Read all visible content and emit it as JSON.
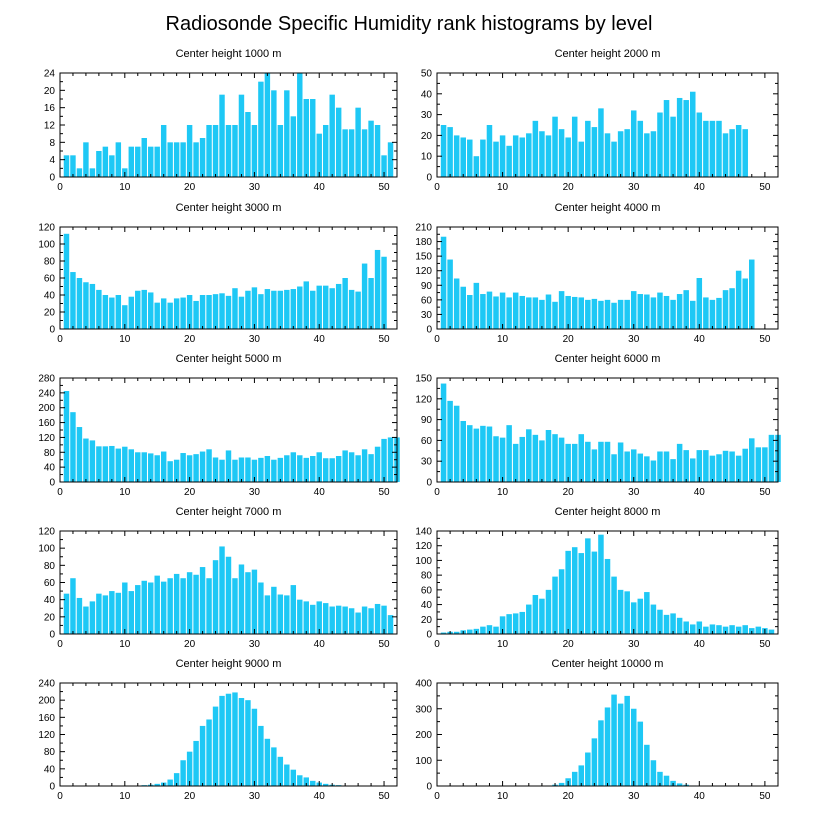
{
  "title": "Radiosonde Specific Humidity rank histograms by level",
  "colors": {
    "bar": "#1EC8F5",
    "axis": "#000000",
    "background": "#ffffff"
  },
  "chart_data": [
    {
      "type": "bar",
      "title": "Center height 1000 m",
      "ylim": [
        0,
        24
      ],
      "yticks": [
        0,
        4,
        8,
        12,
        16,
        20,
        24
      ],
      "xlim": [
        0,
        52
      ],
      "xticks": [
        0,
        10,
        20,
        30,
        40,
        50
      ],
      "values": [
        5,
        5,
        2,
        8,
        2,
        6,
        7,
        5,
        8,
        2,
        7,
        7,
        9,
        7,
        7,
        12,
        8,
        8,
        8,
        12,
        8,
        9,
        12,
        12,
        19,
        12,
        12,
        19,
        15,
        12,
        22,
        24,
        20,
        12,
        20,
        14,
        24,
        18,
        18,
        10,
        12,
        19,
        16,
        11,
        11,
        16,
        11,
        13,
        12,
        5,
        8
      ]
    },
    {
      "type": "bar",
      "title": "Center height 2000 m",
      "ylim": [
        0,
        50
      ],
      "yticks": [
        0,
        10,
        20,
        30,
        40,
        50
      ],
      "xlim": [
        0,
        52
      ],
      "xticks": [
        0,
        10,
        20,
        30,
        40,
        50
      ],
      "values": [
        25,
        24,
        20,
        19,
        18,
        10,
        18,
        25,
        17,
        20,
        15,
        20,
        19,
        21,
        27,
        22,
        20,
        29,
        23,
        19,
        29,
        17,
        27,
        24,
        33,
        21,
        17,
        22,
        23,
        32,
        27,
        21,
        22,
        31,
        37,
        29,
        38,
        37,
        41,
        31,
        27,
        27,
        27,
        21,
        23,
        25,
        23
      ]
    },
    {
      "type": "bar",
      "title": "Center height 3000 m",
      "ylim": [
        0,
        120
      ],
      "yticks": [
        0,
        20,
        40,
        60,
        80,
        100,
        120
      ],
      "xlim": [
        0,
        52
      ],
      "xticks": [
        0,
        10,
        20,
        30,
        40,
        50
      ],
      "values": [
        112,
        67,
        60,
        55,
        53,
        46,
        40,
        37,
        40,
        28,
        38,
        45,
        46,
        43,
        31,
        36,
        31,
        36,
        37,
        40,
        33,
        40,
        40,
        41,
        42,
        39,
        48,
        38,
        45,
        49,
        41,
        47,
        45,
        45,
        46,
        47,
        50,
        56,
        45,
        51,
        51,
        48,
        53,
        60,
        46,
        44,
        77,
        60,
        93,
        85
      ]
    },
    {
      "type": "bar",
      "title": "Center height 4000 m",
      "ylim": [
        0,
        210
      ],
      "yticks": [
        0,
        30,
        60,
        90,
        120,
        150,
        180,
        210
      ],
      "xlim": [
        0,
        52
      ],
      "xticks": [
        0,
        10,
        20,
        30,
        40,
        50
      ],
      "values": [
        190,
        143,
        104,
        87,
        70,
        95,
        72,
        77,
        67,
        75,
        65,
        75,
        68,
        65,
        65,
        60,
        71,
        56,
        78,
        68,
        66,
        65,
        60,
        62,
        58,
        60,
        54,
        60,
        60,
        78,
        72,
        71,
        65,
        75,
        68,
        60,
        72,
        80,
        58,
        105,
        65,
        60,
        64,
        80,
        84,
        120,
        104,
        143
      ]
    },
    {
      "type": "bar",
      "title": "Center height 5000 m",
      "ylim": [
        0,
        280
      ],
      "yticks": [
        0,
        40,
        80,
        120,
        160,
        200,
        240,
        280
      ],
      "xlim": [
        0,
        52
      ],
      "xticks": [
        0,
        10,
        20,
        30,
        40,
        50
      ],
      "values": [
        245,
        188,
        148,
        117,
        112,
        96,
        96,
        97,
        90,
        95,
        88,
        80,
        80,
        77,
        72,
        82,
        56,
        60,
        78,
        72,
        75,
        82,
        88,
        66,
        60,
        85,
        60,
        66,
        66,
        60,
        65,
        70,
        60,
        65,
        72,
        80,
        72,
        65,
        70,
        80,
        64,
        64,
        70,
        85,
        80,
        72,
        88,
        75,
        95,
        116,
        120,
        120
      ]
    },
    {
      "type": "bar",
      "title": "Center height 6000 m",
      "ylim": [
        0,
        150
      ],
      "yticks": [
        0,
        30,
        60,
        90,
        120,
        150
      ],
      "xlim": [
        0,
        52
      ],
      "xticks": [
        0,
        10,
        20,
        30,
        40,
        50
      ],
      "values": [
        142,
        117,
        110,
        88,
        82,
        77,
        81,
        80,
        66,
        64,
        82,
        55,
        65,
        76,
        68,
        60,
        75,
        69,
        64,
        55,
        55,
        69,
        58,
        47,
        58,
        58,
        40,
        57,
        44,
        47,
        41,
        37,
        31,
        44,
        44,
        33,
        55,
        46,
        34,
        46,
        46,
        38,
        40,
        45,
        44,
        38,
        48,
        63,
        50,
        50,
        68,
        68
      ]
    },
    {
      "type": "bar",
      "title": "Center height 7000 m",
      "ylim": [
        0,
        120
      ],
      "yticks": [
        0,
        20,
        40,
        60,
        80,
        100,
        120
      ],
      "xlim": [
        0,
        52
      ],
      "xticks": [
        0,
        10,
        20,
        30,
        40,
        50
      ],
      "values": [
        47,
        65,
        42,
        32,
        38,
        47,
        45,
        50,
        48,
        60,
        50,
        57,
        62,
        60,
        68,
        61,
        65,
        70,
        65,
        72,
        69,
        78,
        65,
        86,
        102,
        90,
        65,
        81,
        72,
        75,
        60,
        45,
        55,
        46,
        45,
        57,
        40,
        38,
        34,
        38,
        36,
        32,
        33,
        32,
        30,
        25,
        32,
        30,
        35,
        33,
        22
      ]
    },
    {
      "type": "bar",
      "title": "Center height 8000 m",
      "ylim": [
        0,
        140
      ],
      "yticks": [
        0,
        20,
        40,
        60,
        80,
        100,
        120,
        140
      ],
      "xlim": [
        0,
        52
      ],
      "xticks": [
        0,
        10,
        20,
        30,
        40,
        50
      ],
      "values": [
        2,
        3,
        3,
        5,
        6,
        7,
        10,
        12,
        10,
        24,
        27,
        28,
        30,
        40,
        53,
        48,
        60,
        78,
        88,
        113,
        118,
        110,
        130,
        112,
        135,
        102,
        78,
        60,
        58,
        43,
        48,
        57,
        40,
        33,
        26,
        28,
        22,
        17,
        13,
        17,
        10,
        13,
        12,
        10,
        12,
        10,
        12,
        8,
        10,
        8,
        6
      ]
    },
    {
      "type": "bar",
      "title": "Center height 9000 m",
      "ylim": [
        0,
        240
      ],
      "yticks": [
        0,
        40,
        80,
        120,
        160,
        200,
        240
      ],
      "xlim": [
        0,
        52
      ],
      "xticks": [
        0,
        10,
        20,
        30,
        40,
        50
      ],
      "values": [
        0,
        0,
        0,
        0,
        0,
        0,
        0,
        0,
        0,
        0,
        0,
        0,
        2,
        3,
        5,
        8,
        15,
        30,
        60,
        80,
        105,
        140,
        155,
        185,
        210,
        215,
        218,
        205,
        200,
        180,
        140,
        110,
        90,
        68,
        50,
        38,
        25,
        20,
        12,
        8,
        5,
        3,
        2,
        1,
        1,
        1,
        0,
        0,
        0,
        0,
        0
      ]
    },
    {
      "type": "bar",
      "title": "Center height 10000 m",
      "ylim": [
        0,
        400
      ],
      "yticks": [
        0,
        100,
        200,
        300,
        400
      ],
      "xlim": [
        0,
        52
      ],
      "xticks": [
        0,
        10,
        20,
        30,
        40,
        50
      ],
      "values": [
        0,
        0,
        0,
        0,
        0,
        0,
        0,
        0,
        0,
        0,
        0,
        0,
        0,
        0,
        0,
        0,
        2,
        5,
        12,
        30,
        55,
        80,
        130,
        185,
        255,
        305,
        355,
        320,
        350,
        300,
        250,
        160,
        100,
        55,
        40,
        20,
        10,
        5,
        2,
        1,
        0,
        0,
        0,
        0,
        0,
        0,
        0,
        0,
        0,
        0,
        0
      ]
    }
  ]
}
